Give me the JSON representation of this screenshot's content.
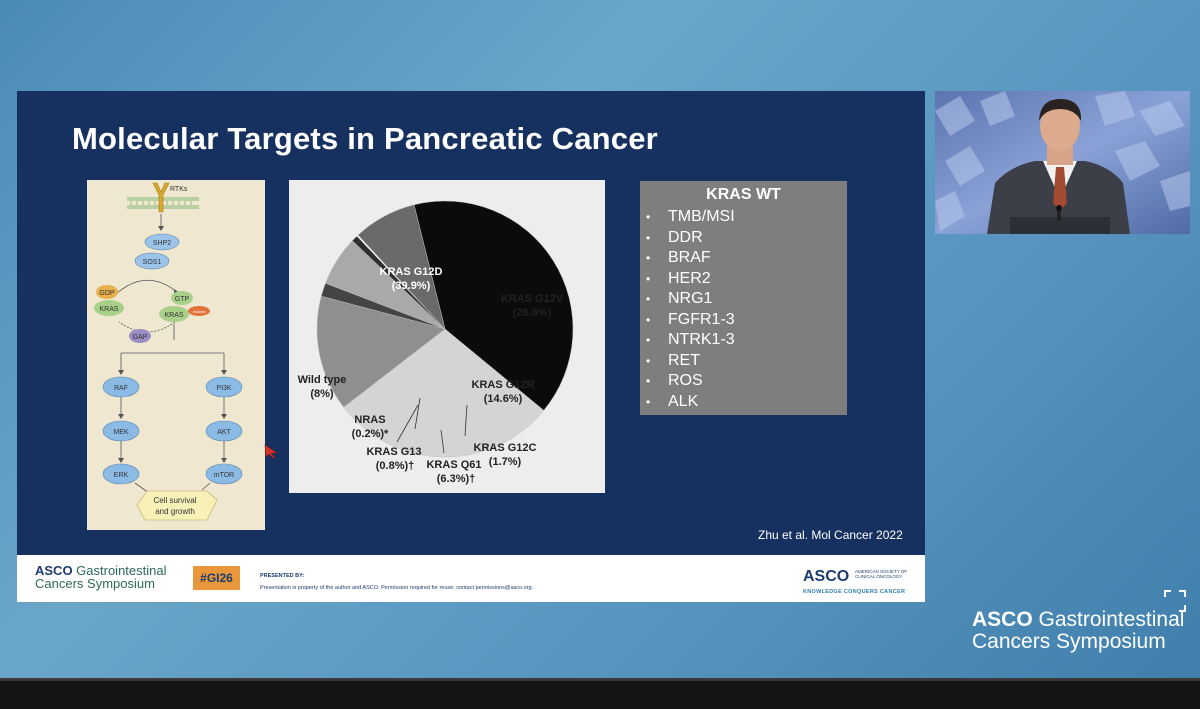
{
  "slide": {
    "title": "Molecular Targets in Pancreatic Cancer",
    "citation": "Zhu et al. Mol Cancer 2022",
    "pathway": {
      "rtks": "RTKs",
      "shp2": "SHP2",
      "sos1": "SOS1",
      "gdp": "GDP",
      "kras_left": "KRAS",
      "gtp": "GTP",
      "kras_right": "KRAS",
      "mutant": "mutant",
      "gap": "GAP",
      "raf": "RAF",
      "mek": "MEK",
      "erk": "ERK",
      "pi3k": "PI3K",
      "akt": "AKT",
      "mtor": "mTOR",
      "outcome_line1": "Cell survival",
      "outcome_line2": "and growth"
    },
    "pie": {
      "labels": {
        "g12d_name": "KRAS G12D",
        "g12d_pct": "(39.9%)",
        "g12v_name": "KRAS G12V",
        "g12v_pct": "(28.6%)",
        "g12r_name": "KRAS G12R",
        "g12r_pct": "(14.6%)",
        "g12c_name": "KRAS G12C",
        "g12c_pct": "(1.7%)",
        "q61_name": "KRAS Q61",
        "q61_pct": "(6.3%)†",
        "g13_name": "KRAS G13",
        "g13_pct": "(0.8%)†",
        "nras_name": "NRAS",
        "nras_pct": "(0.2%)*",
        "wt_name": "Wild type",
        "wt_pct": "(8%)"
      }
    },
    "kras_wt": {
      "title": "KRAS WT",
      "items": [
        "TMB/MSI",
        "DDR",
        "BRAF",
        "HER2",
        "NRG1",
        "FGFR1-3",
        "NTRK1-3",
        "RET",
        "ROS",
        "ALK"
      ]
    },
    "footer": {
      "brand_line1_bold": "ASCO",
      "brand_line1_rest": " Gastrointestinal",
      "brand_line2": "Cancers Symposium",
      "hashtag": "#GI26",
      "presented_by": "PRESENTED BY:",
      "note": "Presentation is property of the author and ASCO. Permission required for reuse; contact permissions@asco.org.",
      "asco": "ASCO",
      "asco_small": "AMERICAN SOCIETY OF CLINICAL ONCOLOGY",
      "motto": "KNOWLEDGE CONQUERS CANCER"
    }
  },
  "chart_data": {
    "type": "pie",
    "title": "",
    "categories": [
      "KRAS G12D",
      "KRAS G12V",
      "KRAS G12R",
      "KRAS G12C",
      "KRAS Q61",
      "KRAS G13",
      "NRAS",
      "Wild type"
    ],
    "values": [
      39.9,
      28.6,
      14.6,
      1.7,
      6.3,
      0.8,
      0.2,
      8
    ],
    "colors": [
      "#0b0b0b",
      "#d4d4d4",
      "#8f8f8f",
      "#444444",
      "#a9a9a9",
      "#2e2e2e",
      "#ffffff",
      "#6a6a6a"
    ]
  },
  "brand": {
    "bold": "ASCO",
    "line1_rest": " Gastrointestinal",
    "line2": "Cancers Symposium"
  },
  "colors": {
    "slide_bg": "#16305f",
    "background": "#5a9ac2",
    "kras_box": "#7e7e7e",
    "hashtag_bg": "#e8973a"
  }
}
